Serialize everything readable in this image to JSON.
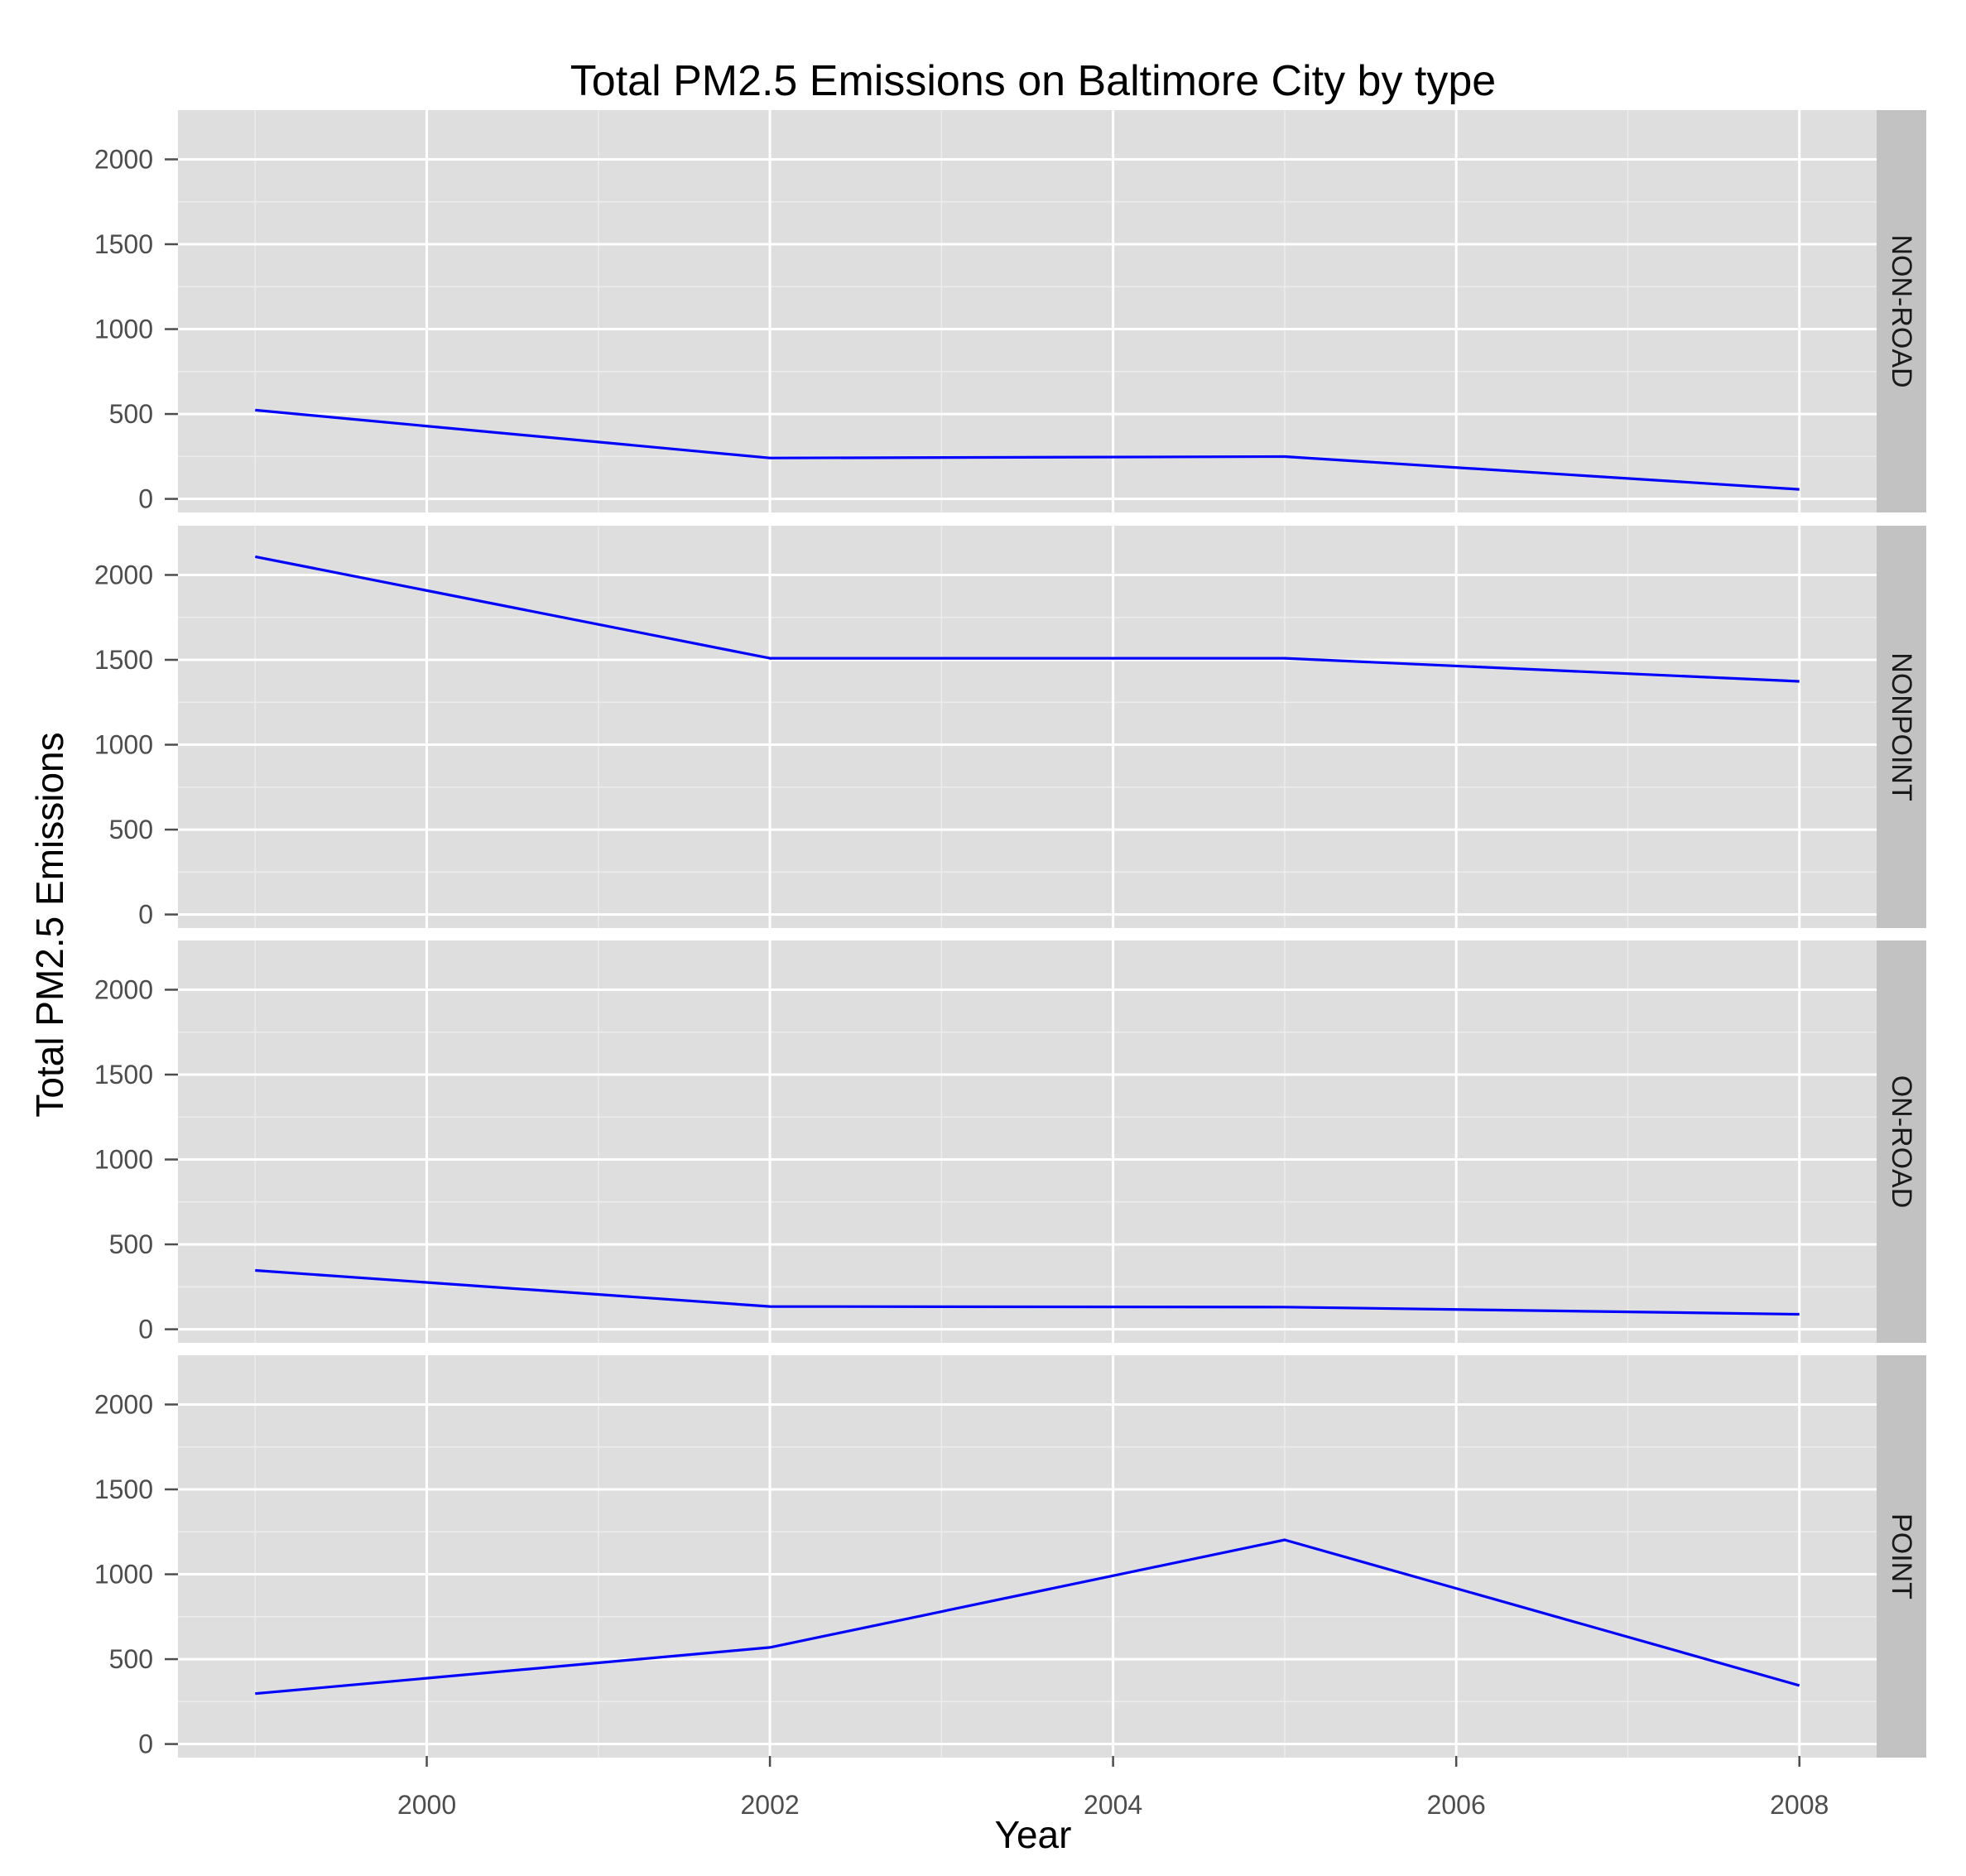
{
  "chart_data": {
    "type": "line",
    "title": "Total PM2.5 Emissions on Baltimore City by type",
    "xlabel": "Year",
    "ylabel": "Total PM2.5 Emissions",
    "x": [
      1999,
      2002,
      2005,
      2008
    ],
    "xlim": [
      1998.55,
      2008.45
    ],
    "x_ticks": [
      2000,
      2002,
      2004,
      2006,
      2008
    ],
    "x_tick_labels": [
      "2000",
      "2002",
      "2004",
      "2006",
      "2008"
    ],
    "ylim": [
      -80,
      2290
    ],
    "y_ticks": [
      0,
      500,
      1000,
      1500,
      2000
    ],
    "y_tick_labels": [
      "0",
      "500",
      "1000",
      "1500",
      "2000"
    ],
    "grid": true,
    "line_color": "#0000ff",
    "panel_background": "#dedede",
    "strip_background": "#c2c2c2",
    "series": [
      {
        "name": "NON-ROAD",
        "values": [
          522.94,
          240.85,
          248.93,
          55.82
        ]
      },
      {
        "name": "NONPOINT",
        "values": [
          2107.63,
          1509.5,
          1509.5,
          1373.21
        ]
      },
      {
        "name": "ON-ROAD",
        "values": [
          346.82,
          134.31,
          130.43,
          88.28
        ]
      },
      {
        "name": "POINT",
        "values": [
          296.8,
          569.26,
          1202.49,
          344.98
        ]
      }
    ]
  }
}
